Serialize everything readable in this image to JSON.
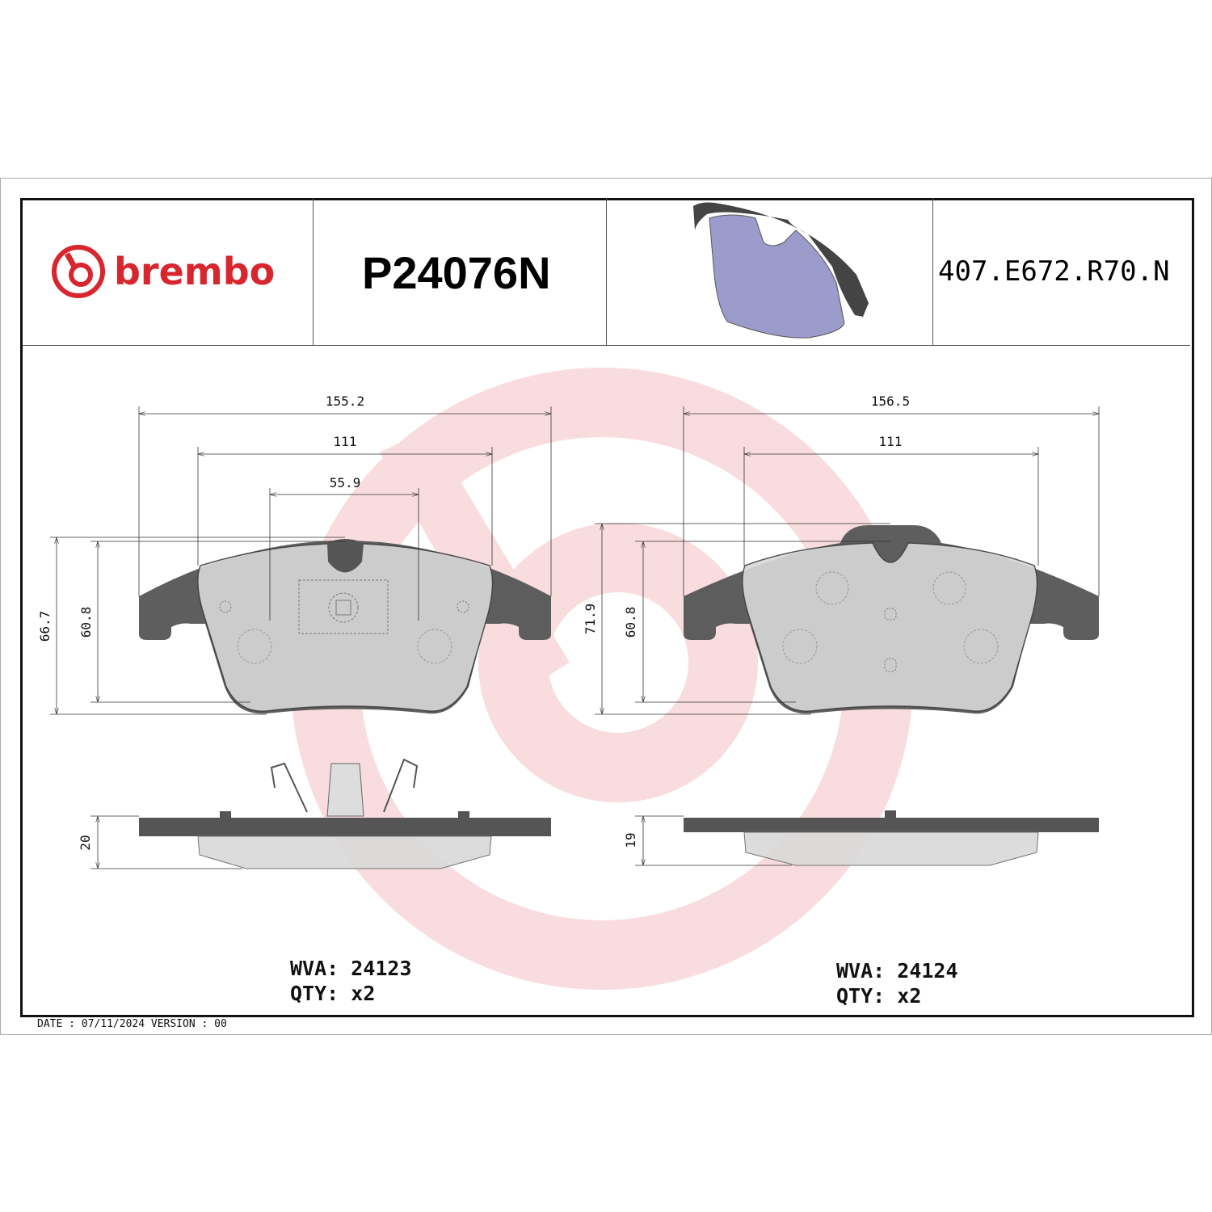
{
  "header": {
    "brand": "brembo",
    "part_number": "P24076N",
    "reference": "407.E672.R70.N"
  },
  "colors": {
    "brand_red": "#d7262e",
    "watermark": "#f4c9cc",
    "backplate": "#555555",
    "friction": "#d9d9d9",
    "preview_pad": "#9c9ccc"
  },
  "left_pad": {
    "dims": {
      "width_total": "155.2",
      "width_inner": "111",
      "width_center": "55.9",
      "height_total": "66.7",
      "height_friction": "60.8",
      "thickness": "20"
    },
    "wva_label": "WVA:",
    "wva": "24123",
    "qty_label": "QTY:",
    "qty": "x2"
  },
  "right_pad": {
    "dims": {
      "width_total": "156.5",
      "width_inner": "111",
      "height_total": "71.9",
      "height_friction": "60.8",
      "thickness": "19"
    },
    "wva_label": "WVA:",
    "wva": "24124",
    "qty_label": "QTY:",
    "qty": "x2"
  },
  "footer": {
    "date_line": "DATE : 07/11/2024 VERSION : 00"
  }
}
